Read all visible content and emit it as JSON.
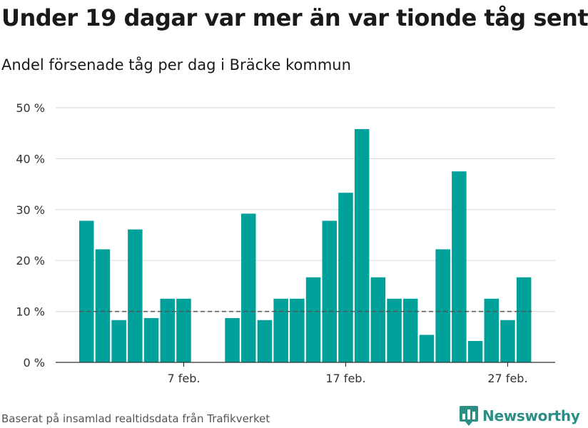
{
  "header": {
    "title": "Under 19 dagar var mer än var tionde tåg sent",
    "subtitle": "Andel försenade tåg per dag i Bräcke kommun"
  },
  "footer": {
    "source": "Baserat på insamlad realtidsdata från Trafikverket",
    "brand": "Newsworthy",
    "brand_icon": "bar-chart-logo-icon"
  },
  "colors": {
    "bar": "#00a19a",
    "grid": "#dddddd",
    "reference_line": "#555555",
    "brand": "#2b8f86"
  },
  "chart_data": {
    "type": "bar",
    "title": "",
    "xlabel": "",
    "ylabel": "",
    "ylim": [
      0,
      50
    ],
    "yticks": [
      0,
      10,
      20,
      30,
      40,
      50
    ],
    "ytick_labels": [
      "0 %",
      "10 %",
      "20 %",
      "30 %",
      "40 %",
      "50 %"
    ],
    "y_unit": "%",
    "grid": true,
    "reference_line": {
      "value": 10,
      "style": "dashed"
    },
    "categories": [
      "1 feb.",
      "2 feb.",
      "3 feb.",
      "4 feb.",
      "5 feb.",
      "6 feb.",
      "7 feb.",
      "8 feb.",
      "9 feb.",
      "10 feb.",
      "11 feb.",
      "12 feb.",
      "13 feb.",
      "14 feb.",
      "15 feb.",
      "16 feb.",
      "17 feb.",
      "18 feb.",
      "19 feb.",
      "20 feb.",
      "21 feb.",
      "22 feb.",
      "23 feb.",
      "24 feb.",
      "25 feb.",
      "26 feb.",
      "27 feb.",
      "28 feb."
    ],
    "values": [
      27.8,
      22.2,
      8.3,
      26.1,
      8.7,
      12.5,
      12.5,
      null,
      null,
      8.7,
      29.2,
      8.3,
      12.5,
      12.5,
      16.7,
      27.8,
      33.3,
      45.8,
      16.7,
      12.5,
      12.5,
      5.4,
      22.2,
      37.5,
      4.2,
      12.5,
      8.3,
      16.7
    ],
    "xtick_labels": [
      {
        "category": "7 feb.",
        "label": "7 feb."
      },
      {
        "category": "17 feb.",
        "label": "17 feb."
      },
      {
        "category": "27 feb.",
        "label": "27 feb."
      }
    ]
  }
}
